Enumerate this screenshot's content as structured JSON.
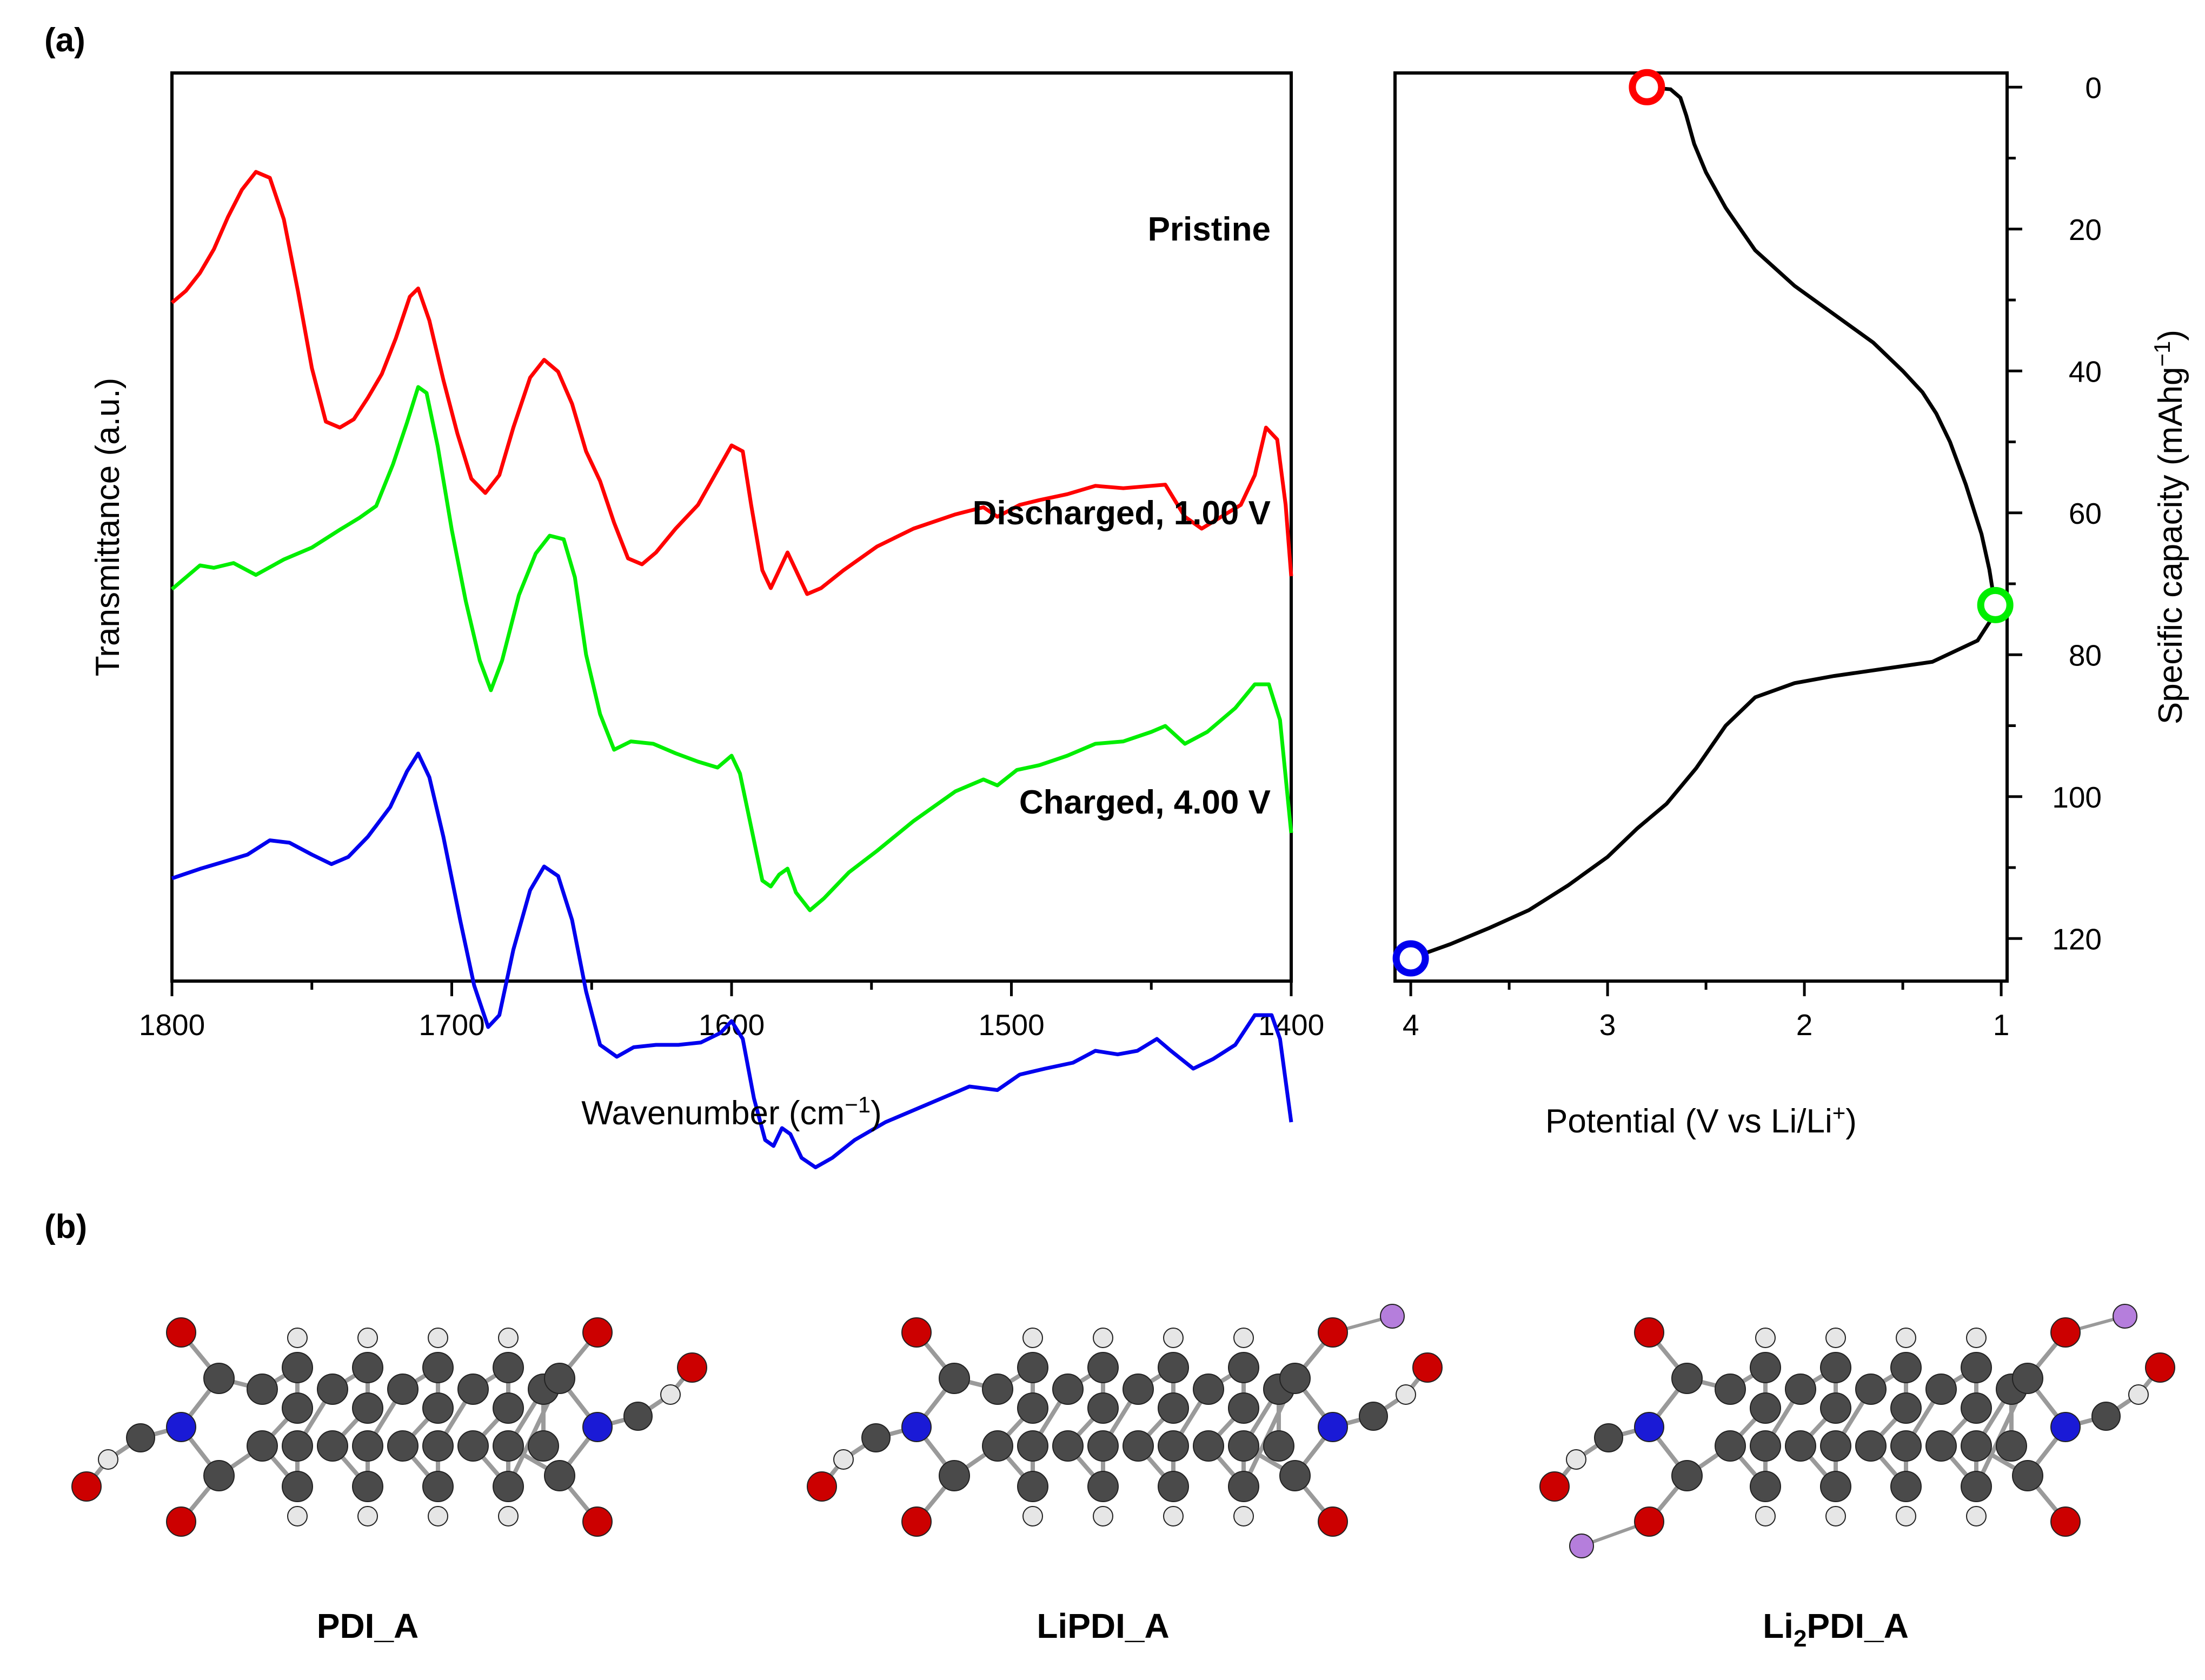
{
  "panels": {
    "a_label": "(a)",
    "b_label": "(b)"
  },
  "chart_data": [
    {
      "type": "line",
      "xlabel": "Wavenumber (cm⁻¹)",
      "xlabel_main": "Wavenumber (cm",
      "xlabel_sup": "−1",
      "xlabel_close": ")",
      "ylabel": "Transmittance (a.u.)",
      "xlim": [
        1800,
        1400
      ],
      "x_ticks": [
        1800,
        1700,
        1600,
        1500,
        1400
      ],
      "y_ticks_shown": false,
      "series": [
        {
          "name": "Pristine",
          "color": "#ff0000",
          "points": [
            [
              1800,
              0.0
            ],
            [
              1795,
              1.0
            ],
            [
              1790,
              2.5
            ],
            [
              1785,
              4.5
            ],
            [
              1780,
              7.2
            ],
            [
              1775,
              9.5
            ],
            [
              1770,
              11.0
            ],
            [
              1765,
              10.5
            ],
            [
              1760,
              7.0
            ],
            [
              1755,
              1.0
            ],
            [
              1750,
              -5.5
            ],
            [
              1745,
              -10.0
            ],
            [
              1740,
              -10.5
            ],
            [
              1735,
              -9.8
            ],
            [
              1730,
              -8.0
            ],
            [
              1725,
              -6.0
            ],
            [
              1720,
              -3.0
            ],
            [
              1715,
              0.5
            ],
            [
              1712,
              1.2
            ],
            [
              1708,
              -1.5
            ],
            [
              1703,
              -6.5
            ],
            [
              1698,
              -11.0
            ],
            [
              1693,
              -14.8
            ],
            [
              1688,
              -16.0
            ],
            [
              1683,
              -14.5
            ],
            [
              1678,
              -10.5
            ],
            [
              1672,
              -6.3
            ],
            [
              1667,
              -4.8
            ],
            [
              1662,
              -5.8
            ],
            [
              1657,
              -8.5
            ],
            [
              1652,
              -12.5
            ],
            [
              1647,
              -15.0
            ],
            [
              1642,
              -18.5
            ],
            [
              1637,
              -21.5
            ],
            [
              1632,
              -22.0
            ],
            [
              1627,
              -21.0
            ],
            [
              1620,
              -19.0
            ],
            [
              1612,
              -17.0
            ],
            [
              1606,
              -14.5
            ],
            [
              1600,
              -12.0
            ],
            [
              1596,
              -12.5
            ],
            [
              1593,
              -17.0
            ],
            [
              1589,
              -22.5
            ],
            [
              1586,
              -24.0
            ],
            [
              1583,
              -22.5
            ],
            [
              1580,
              -21.0
            ],
            [
              1577,
              -22.5
            ],
            [
              1573,
              -24.5
            ],
            [
              1568,
              -24.0
            ],
            [
              1560,
              -22.5
            ],
            [
              1548,
              -20.5
            ],
            [
              1535,
              -19.0
            ],
            [
              1520,
              -17.8
            ],
            [
              1510,
              -17.2
            ],
            [
              1505,
              -18.0
            ],
            [
              1497,
              -17.0
            ],
            [
              1490,
              -16.6
            ],
            [
              1480,
              -16.1
            ],
            [
              1470,
              -15.4
            ],
            [
              1460,
              -15.6
            ],
            [
              1450,
              -15.4
            ],
            [
              1445,
              -15.3
            ],
            [
              1438,
              -18.0
            ],
            [
              1432,
              -19.0
            ],
            [
              1425,
              -18.0
            ],
            [
              1418,
              -17.0
            ],
            [
              1413,
              -14.5
            ],
            [
              1409,
              -10.5
            ],
            [
              1405,
              -11.5
            ],
            [
              1402,
              -17.0
            ],
            [
              1400,
              -23.0
            ]
          ]
        },
        {
          "name": "Discharged, 1.00 V",
          "color": "#00ee00",
          "points": [
            [
              1800,
              0.0
            ],
            [
              1795,
              1.0
            ],
            [
              1790,
              2.0
            ],
            [
              1785,
              1.8
            ],
            [
              1778,
              2.2
            ],
            [
              1770,
              1.2
            ],
            [
              1760,
              2.5
            ],
            [
              1750,
              3.5
            ],
            [
              1740,
              5.0
            ],
            [
              1733,
              6.0
            ],
            [
              1727,
              7.0
            ],
            [
              1721,
              10.5
            ],
            [
              1716,
              14.0
            ],
            [
              1712,
              17.0
            ],
            [
              1709,
              16.5
            ],
            [
              1705,
              12.0
            ],
            [
              1700,
              5.0
            ],
            [
              1695,
              -1.0
            ],
            [
              1690,
              -6.0
            ],
            [
              1686,
              -8.5
            ],
            [
              1682,
              -6.0
            ],
            [
              1676,
              -0.5
            ],
            [
              1670,
              3.0
            ],
            [
              1665,
              4.5
            ],
            [
              1660,
              4.2
            ],
            [
              1656,
              1.0
            ],
            [
              1652,
              -5.5
            ],
            [
              1647,
              -10.5
            ],
            [
              1642,
              -13.5
            ],
            [
              1636,
              -12.8
            ],
            [
              1628,
              -13.0
            ],
            [
              1620,
              -13.8
            ],
            [
              1612,
              -14.5
            ],
            [
              1605,
              -15.0
            ],
            [
              1600,
              -14.0
            ],
            [
              1597,
              -15.5
            ],
            [
              1593,
              -20.0
            ],
            [
              1589,
              -24.5
            ],
            [
              1586,
              -25.0
            ],
            [
              1583,
              -24.0
            ],
            [
              1580,
              -23.5
            ],
            [
              1577,
              -25.5
            ],
            [
              1572,
              -27.0
            ],
            [
              1567,
              -26.0
            ],
            [
              1558,
              -23.8
            ],
            [
              1548,
              -22.0
            ],
            [
              1535,
              -19.5
            ],
            [
              1520,
              -17.0
            ],
            [
              1510,
              -16.0
            ],
            [
              1505,
              -16.5
            ],
            [
              1498,
              -15.2
            ],
            [
              1490,
              -14.8
            ],
            [
              1480,
              -14.0
            ],
            [
              1470,
              -13.0
            ],
            [
              1460,
              -12.8
            ],
            [
              1450,
              -12.0
            ],
            [
              1445,
              -11.5
            ],
            [
              1438,
              -13.0
            ],
            [
              1430,
              -12.0
            ],
            [
              1420,
              -10.0
            ],
            [
              1413,
              -8.0
            ],
            [
              1408,
              -8.0
            ],
            [
              1404,
              -11.0
            ],
            [
              1400,
              -20.5
            ]
          ]
        },
        {
          "name": "Charged, 4.00 V",
          "color": "#0000ee",
          "points": [
            [
              1800,
              0.0
            ],
            [
              1795,
              0.4
            ],
            [
              1790,
              0.8
            ],
            [
              1780,
              1.5
            ],
            [
              1773,
              2.0
            ],
            [
              1765,
              3.2
            ],
            [
              1758,
              3.0
            ],
            [
              1750,
              2.0
            ],
            [
              1743,
              1.2
            ],
            [
              1737,
              1.8
            ],
            [
              1730,
              3.5
            ],
            [
              1722,
              6.0
            ],
            [
              1716,
              9.0
            ],
            [
              1712,
              10.5
            ],
            [
              1708,
              8.5
            ],
            [
              1703,
              3.5
            ],
            [
              1697,
              -3.5
            ],
            [
              1692,
              -9.0
            ],
            [
              1687,
              -12.5
            ],
            [
              1683,
              -11.5
            ],
            [
              1678,
              -6.0
            ],
            [
              1672,
              -1.0
            ],
            [
              1667,
              1.0
            ],
            [
              1662,
              0.2
            ],
            [
              1657,
              -3.5
            ],
            [
              1652,
              -9.5
            ],
            [
              1647,
              -14.0
            ],
            [
              1641,
              -15.0
            ],
            [
              1635,
              -14.2
            ],
            [
              1627,
              -14.0
            ],
            [
              1619,
              -14.0
            ],
            [
              1611,
              -13.8
            ],
            [
              1604,
              -13.0
            ],
            [
              1600,
              -12.0
            ],
            [
              1596,
              -13.5
            ],
            [
              1592,
              -18.5
            ],
            [
              1588,
              -22.0
            ],
            [
              1585,
              -22.5
            ],
            [
              1582,
              -21.0
            ],
            [
              1579,
              -21.5
            ],
            [
              1575,
              -23.5
            ],
            [
              1570,
              -24.3
            ],
            [
              1564,
              -23.5
            ],
            [
              1556,
              -22.0
            ],
            [
              1545,
              -20.5
            ],
            [
              1530,
              -19.0
            ],
            [
              1515,
              -17.5
            ],
            [
              1505,
              -17.8
            ],
            [
              1497,
              -16.5
            ],
            [
              1488,
              -16.0
            ],
            [
              1478,
              -15.5
            ],
            [
              1470,
              -14.5
            ],
            [
              1462,
              -14.8
            ],
            [
              1455,
              -14.5
            ],
            [
              1448,
              -13.5
            ],
            [
              1443,
              -14.5
            ],
            [
              1435,
              -16.0
            ],
            [
              1428,
              -15.2
            ],
            [
              1420,
              -14.0
            ],
            [
              1413,
              -11.5
            ],
            [
              1407,
              -11.5
            ],
            [
              1404,
              -13.5
            ],
            [
              1400,
              -20.5
            ]
          ]
        }
      ]
    },
    {
      "type": "line",
      "xlabel": "Potential (V vs Li/Li⁺)",
      "xlabel_main": "Potential (V vs Li/Li",
      "xlabel_sup": "+",
      "xlabel_close": ")",
      "ylabel": "Specific capacity (mAhg⁻¹)",
      "ylabel_main": "Specific capacity (mAhg",
      "ylabel_sup": "−1",
      "ylabel_close": ")",
      "xlim": [
        4.08,
        0.97
      ],
      "ylim": [
        -2,
        126
      ],
      "y_inverted": true,
      "y_axis_side": "right",
      "x_ticks": [
        4,
        3,
        2,
        1
      ],
      "y_ticks": [
        0,
        20,
        40,
        60,
        80,
        100,
        120
      ],
      "curve": {
        "color": "#000000",
        "points": [
          [
            2.8,
            0
          ],
          [
            2.68,
            0.3
          ],
          [
            2.63,
            1.5
          ],
          [
            2.6,
            4
          ],
          [
            2.56,
            8
          ],
          [
            2.5,
            12
          ],
          [
            2.4,
            17
          ],
          [
            2.25,
            23
          ],
          [
            2.05,
            28
          ],
          [
            1.85,
            32
          ],
          [
            1.65,
            36
          ],
          [
            1.5,
            40
          ],
          [
            1.4,
            43
          ],
          [
            1.33,
            46
          ],
          [
            1.26,
            50
          ],
          [
            1.18,
            56
          ],
          [
            1.1,
            63
          ],
          [
            1.06,
            68
          ],
          [
            1.04,
            71.5
          ],
          [
            1.03,
            73
          ],
          [
            1.05,
            75
          ],
          [
            1.12,
            78
          ],
          [
            1.35,
            81
          ],
          [
            1.6,
            82
          ],
          [
            1.85,
            83
          ],
          [
            2.05,
            84
          ],
          [
            2.25,
            86
          ],
          [
            2.4,
            90
          ],
          [
            2.55,
            96
          ],
          [
            2.7,
            101
          ],
          [
            2.85,
            104.5
          ],
          [
            3.0,
            108.5
          ],
          [
            3.2,
            112.5
          ],
          [
            3.4,
            116
          ],
          [
            3.6,
            118.5
          ],
          [
            3.8,
            120.8
          ],
          [
            4.0,
            122.8
          ]
        ]
      },
      "markers": [
        {
          "x": 2.8,
          "y": 0,
          "color": "#ff0000"
        },
        {
          "x": 1.03,
          "y": 73,
          "color": "#00ee00"
        },
        {
          "x": 4.0,
          "y": 122.8,
          "color": "#0000ee"
        }
      ]
    }
  ],
  "molecules": [
    {
      "id": "pdi",
      "label_parts": [
        {
          "text": "PDI_A",
          "sub": false
        }
      ],
      "li_count": 0
    },
    {
      "id": "lipdi",
      "label_parts": [
        {
          "text": "LiPDI_A",
          "sub": false
        }
      ],
      "li_count": 1
    },
    {
      "id": "li2pdi",
      "label_parts": [
        {
          "text": "Li",
          "sub": false
        },
        {
          "text": "2",
          "sub": true
        },
        {
          "text": "PDI_A",
          "sub": false
        }
      ],
      "li_count": 2
    }
  ],
  "atom_colors": {
    "carbon": "#4a4a4a",
    "oxygen": "#cc0000",
    "nitrogen": "#1a1ad6",
    "hydrogen": "#e6e6e6",
    "lithium": "#b57edc"
  }
}
